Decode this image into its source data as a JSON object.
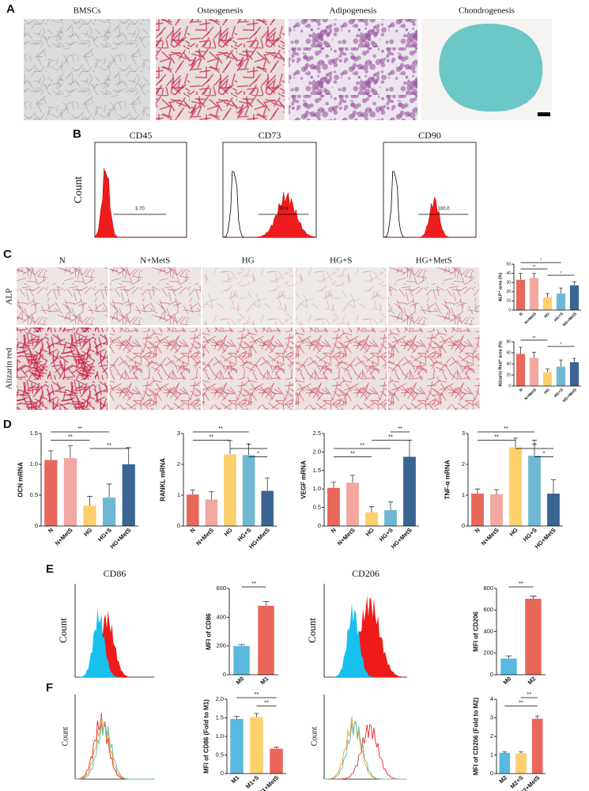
{
  "panel_labels": [
    "A",
    "B",
    "C",
    "D",
    "E",
    "F"
  ],
  "panel_a": {
    "captions": [
      "BMSCs",
      "Osteogenesis",
      "Adipogenesis",
      "Chondrogenesis"
    ]
  },
  "panel_b": {
    "titles": [
      "CD45",
      "CD73",
      "CD90"
    ],
    "y_label": "Count",
    "gates": [
      "3.70",
      "99.8",
      "100.0"
    ]
  },
  "panel_c": {
    "columns": [
      "N",
      "N+MetS",
      "HG",
      "HG+S",
      "HG+MetS"
    ],
    "rows": [
      "ALP",
      "Alizarin red"
    ]
  },
  "panel_e": {
    "titles": [
      "CD86",
      "CD206"
    ],
    "y_label": "Count"
  },
  "panel_f": {
    "y_label": "Count"
  },
  "chart_data": [
    {
      "type": "bar",
      "y_label": "ALP⁺ area (%)",
      "categories": [
        "N",
        "N+MetS",
        "HG",
        "HG+S",
        "HG+MetS"
      ],
      "colors": [
        "#e8685a",
        "#f2a7a1",
        "#fdd06b",
        "#6fb8d4",
        "#3a6592"
      ],
      "values": [
        33,
        35,
        14,
        18,
        27
      ],
      "errors": [
        7,
        5,
        4,
        6,
        4
      ],
      "ylim": [
        0,
        50
      ],
      "yticks": [
        0,
        10,
        20,
        30,
        40,
        50
      ],
      "brackets": [
        {
          "label": "*",
          "from": 0,
          "to": 3
        },
        {
          "label": "**",
          "from": 0,
          "to": 2
        },
        {
          "label": "*",
          "from": 2,
          "to": 4
        }
      ]
    },
    {
      "type": "bar",
      "y_label": "Alizarin Red⁺ area (%)",
      "categories": [
        "N",
        "N+MetS",
        "HG",
        "HG+S",
        "HG+MetS"
      ],
      "colors": [
        "#e8685a",
        "#f2a7a1",
        "#fdd06b",
        "#6fb8d4",
        "#3a6592"
      ],
      "values": [
        58,
        51,
        25,
        35,
        43
      ],
      "errors": [
        12,
        10,
        6,
        12,
        7
      ],
      "ylim": [
        0,
        80
      ],
      "yticks": [
        0,
        20,
        40,
        60,
        80
      ],
      "brackets": [
        {
          "label": "**",
          "from": 0,
          "to": 2
        },
        {
          "label": "*",
          "from": 2,
          "to": 4
        }
      ]
    },
    {
      "type": "bar",
      "y_label": "OCN mRNA",
      "categories": [
        "N",
        "N+MetS",
        "HG",
        "HG+S",
        "HG+MetS"
      ],
      "colors": [
        "#e8685a",
        "#f2a7a1",
        "#fdd06b",
        "#6fb8d4",
        "#3a6592"
      ],
      "values": [
        1.07,
        1.1,
        0.33,
        0.46,
        1.0
      ],
      "errors": [
        0.15,
        0.2,
        0.15,
        0.22,
        0.27
      ],
      "ylim": [
        0,
        1.5
      ],
      "yticks": [
        0,
        0.5,
        {
          "value": 1,
          "label": "1.0"
        },
        1.5
      ],
      "brackets": [
        {
          "label": "**",
          "from": 0,
          "to": 3
        },
        {
          "label": "**",
          "from": 0,
          "to": 2
        },
        {
          "label": "**",
          "from": 2,
          "to": 4
        }
      ]
    },
    {
      "type": "bar",
      "y_label": "RANKL mRNA",
      "categories": [
        "N",
        "N+MetS",
        "HG",
        "HG+S",
        "HG+MetS"
      ],
      "colors": [
        "#e8685a",
        "#f2a7a1",
        "#fdd06b",
        "#6fb8d4",
        "#3a6592"
      ],
      "values": [
        1.02,
        0.86,
        2.32,
        2.3,
        1.14
      ],
      "errors": [
        0.15,
        0.25,
        0.45,
        0.35,
        0.42
      ],
      "ylim": [
        0,
        3
      ],
      "yticks": [
        0,
        1,
        2,
        3
      ],
      "brackets": [
        {
          "label": "**",
          "from": 0,
          "to": 3
        },
        {
          "label": "**",
          "from": 0,
          "to": 2
        },
        {
          "label": "*",
          "from": 2,
          "to": 4
        },
        {
          "label": "*",
          "from": 3,
          "to": 4
        }
      ]
    },
    {
      "type": "bar",
      "y_label": "VEGF mRNA",
      "categories": [
        "N",
        "N+MetS",
        "HG",
        "HG+S",
        "HG+MetS"
      ],
      "colors": [
        "#e8685a",
        "#f2a7a1",
        "#fdd06b",
        "#6fb8d4",
        "#3a6592"
      ],
      "values": [
        1.03,
        1.17,
        0.37,
        0.43,
        1.87
      ],
      "errors": [
        0.15,
        0.2,
        0.15,
        0.22,
        0.45
      ],
      "ylim": [
        0,
        2.5
      ],
      "yticks": [
        0,
        0.5,
        {
          "value": 1,
          "label": "1.0"
        },
        1.5,
        {
          "value": 2,
          "label": "2.0"
        },
        2.5
      ],
      "brackets": [
        {
          "label": "**",
          "from": 3,
          "to": 4
        },
        {
          "label": "**",
          "from": 2,
          "to": 4
        },
        {
          "label": "**",
          "from": 0,
          "to": 3
        },
        {
          "label": "**",
          "from": 0,
          "to": 2
        }
      ]
    },
    {
      "type": "bar",
      "y_label": "TNF-α mRNA",
      "categories": [
        "N",
        "N+MetS",
        "HG",
        "HG+S",
        "HG+MetS"
      ],
      "colors": [
        "#e8685a",
        "#f2a7a1",
        "#fdd06b",
        "#6fb8d4",
        "#3a6592"
      ],
      "values": [
        1.05,
        1.03,
        2.55,
        2.28,
        1.05
      ],
      "errors": [
        0.15,
        0.15,
        0.3,
        0.5,
        0.45
      ],
      "ylim": [
        0,
        3
      ],
      "yticks": [
        0,
        1,
        2,
        3
      ],
      "brackets": [
        {
          "label": "**",
          "from": 0,
          "to": 3
        },
        {
          "label": "**",
          "from": 0,
          "to": 2
        },
        {
          "label": "**",
          "from": 2,
          "to": 4
        },
        {
          "label": "*",
          "from": 3,
          "to": 4
        }
      ]
    },
    {
      "type": "bar",
      "y_label": "MFI of CD86",
      "categories": [
        "M0",
        "M1"
      ],
      "colors": [
        "#5bb8de",
        "#e9675a"
      ],
      "values": [
        200,
        480
      ],
      "errors": [
        10,
        30
      ],
      "ylim": [
        0,
        600
      ],
      "yticks": [
        0,
        200,
        400,
        600
      ],
      "brackets": [
        {
          "label": "**",
          "from": 0,
          "to": 1
        }
      ]
    },
    {
      "type": "bar",
      "y_label": "MFI of CD206",
      "categories": [
        "M0",
        "M2"
      ],
      "colors": [
        "#5bb8de",
        "#e9675a"
      ],
      "values": [
        150,
        705
      ],
      "errors": [
        25,
        25
      ],
      "ylim": [
        0,
        800
      ],
      "yticks": [
        0,
        200,
        400,
        600,
        800
      ],
      "brackets": [
        {
          "label": "**",
          "from": 0,
          "to": 1
        }
      ]
    },
    {
      "type": "bar",
      "y_label": "MFI of CD86 (Fold to M1)",
      "categories": [
        "M1",
        "M1+S",
        "M1+MetS"
      ],
      "colors": [
        "#5bb8de",
        "#fdd06b",
        "#e9675a"
      ],
      "values": [
        1.47,
        1.52,
        0.67
      ],
      "errors": [
        0.07,
        0.1,
        0.04
      ],
      "ylim": [
        0,
        2.0
      ],
      "yticks": [
        0,
        0.5,
        {
          "value": 1,
          "label": "1.0"
        },
        1.5,
        {
          "value": 2,
          "label": "2.0"
        }
      ],
      "brackets": [
        {
          "label": "**",
          "from": 0,
          "to": 2
        },
        {
          "label": "**",
          "from": 1,
          "to": 2
        }
      ]
    },
    {
      "type": "bar",
      "y_label": "MFI of CD206 (Fold to M2)",
      "categories": [
        "M2",
        "M2+S",
        "M2+MetS"
      ],
      "colors": [
        "#5bb8de",
        "#fdd06b",
        "#e9675a"
      ],
      "values": [
        1.12,
        1.1,
        2.95
      ],
      "errors": [
        0.05,
        0.08,
        0.15
      ],
      "ylim": [
        0,
        4
      ],
      "yticks": [
        0,
        1,
        2,
        3,
        4
      ],
      "brackets": [
        {
          "label": "**",
          "from": 1,
          "to": 2
        },
        {
          "label": "**",
          "from": 0,
          "to": 2
        }
      ]
    }
  ]
}
